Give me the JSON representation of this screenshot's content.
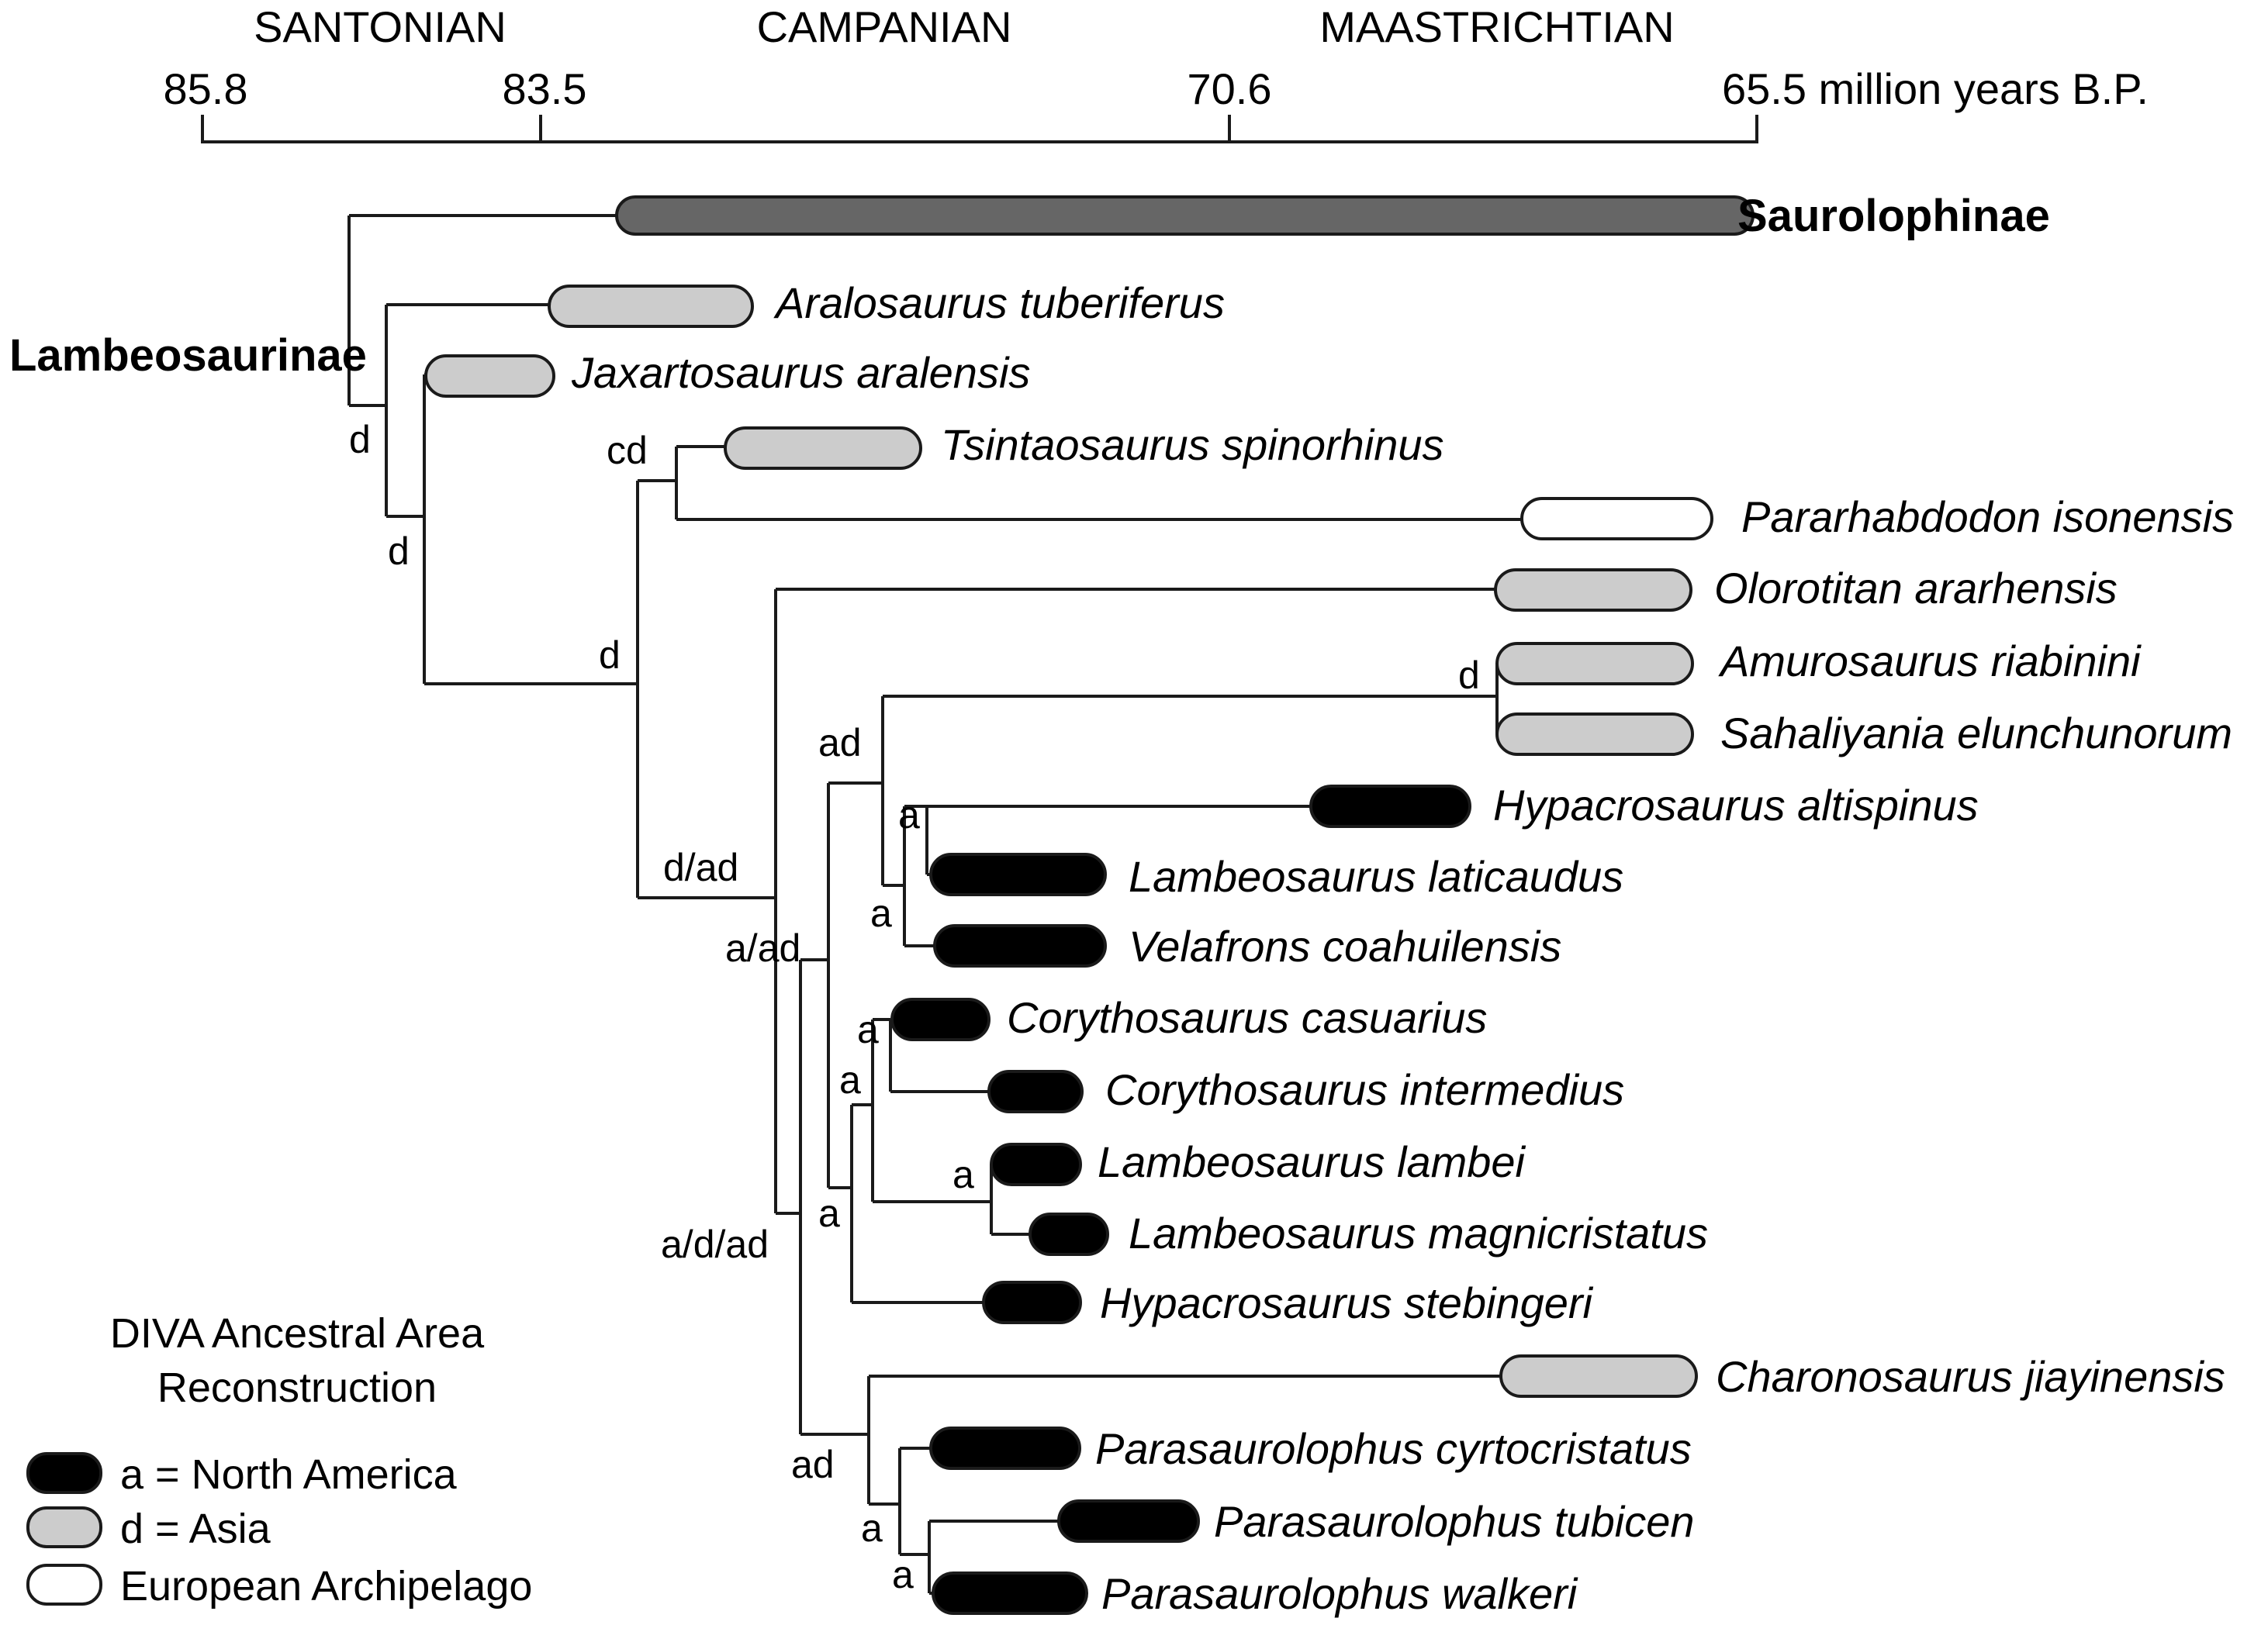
{
  "timescale": {
    "stages": [
      "SANTONIAN",
      "CAMPANIAN",
      "MAASTRICHTIAN"
    ],
    "ticks": [
      {
        "label": "85.8",
        "value": 85.8
      },
      {
        "label": "83.5",
        "value": 83.5
      },
      {
        "label": "70.6",
        "value": 70.6
      },
      {
        "label": "65.5 million years B.P.",
        "value": 65.5
      }
    ]
  },
  "clades": {
    "saurolophinae": "Saurolophinae",
    "lambeosaurinae": "Lambeosaurinae"
  },
  "taxa": [
    {
      "name": "Saurolophinae",
      "area": "outgroup"
    },
    {
      "name": "Aralosaurus tuberiferus",
      "area": "d"
    },
    {
      "name": "Jaxartosaurus aralensis",
      "area": "d"
    },
    {
      "name": "Tsintaosaurus spinorhinus",
      "area": "d"
    },
    {
      "name": "Pararhabdodon isonensis",
      "area": "e"
    },
    {
      "name": "Olorotitan ararhensis",
      "area": "d"
    },
    {
      "name": "Amurosaurus riabinini",
      "area": "d"
    },
    {
      "name": "Sahaliyania elunchunorum",
      "area": "d"
    },
    {
      "name": "Hypacrosaurus altispinus",
      "area": "a"
    },
    {
      "name": "Lambeosaurus laticaudus",
      "area": "a"
    },
    {
      "name": "Velafrons coahuilensis",
      "area": "a"
    },
    {
      "name": "Corythosaurus casuarius",
      "area": "a"
    },
    {
      "name": "Corythosaurus intermedius",
      "area": "a"
    },
    {
      "name": "Lambeosaurus lambei",
      "area": "a"
    },
    {
      "name": "Lambeosaurus magnicristatus",
      "area": "a"
    },
    {
      "name": "Hypacrosaurus stebingeri",
      "area": "a"
    },
    {
      "name": "Charonosaurus jiayinensis",
      "area": "d"
    },
    {
      "name": "Parasaurolophus cyrtocristatus",
      "area": "a"
    },
    {
      "name": "Parasaurolophus tubicen",
      "area": "a"
    },
    {
      "name": "Parasaurolophus walkeri",
      "area": "a"
    }
  ],
  "node_labels": [
    "d",
    "d",
    "cd",
    "d",
    "d/ad",
    "a/ad",
    "ad",
    "a",
    "a",
    "d",
    "a",
    "a",
    "a",
    "a",
    "a/d/ad",
    "ad",
    "a",
    "a"
  ],
  "legend": {
    "title_line1": "DIVA Ancestral Area",
    "title_line2": "Reconstruction",
    "items": [
      {
        "label": "a = North America",
        "area": "a"
      },
      {
        "label": "d = Asia",
        "area": "d"
      },
      {
        "label": "European Archipelago",
        "area": "e"
      }
    ]
  },
  "colors": {
    "north_america": "#000000",
    "asia": "#cccccc",
    "european_archipelago": "#ffffff",
    "outgroup": "#666666",
    "line": "#1a1a1a"
  }
}
